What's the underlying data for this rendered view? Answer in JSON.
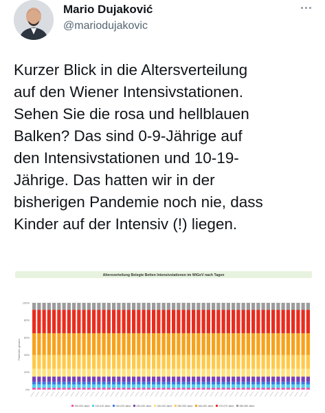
{
  "author": {
    "name": "Mario Dujaković",
    "handle": "@mariodujakovic"
  },
  "tweet": {
    "lines": [
      "Kurzer Blick in die Altersverteilung",
      "auf den Wiener Intensivstationen.",
      "Sehen Sie die rosa und hellblauen",
      "Balken? Das sind 0-9-Jährige auf",
      "den Intensivstationen und 10-19-",
      "Jährige. Das hatten wir in der",
      "bisherigen Pandemie noch nie, dass",
      "Kinder auf der Intensiv (!) liegen."
    ]
  },
  "icons": {
    "more": "more-dots-icon"
  },
  "chart_data": {
    "type": "bar",
    "stacked": "percent",
    "title": "Altersverteilung Belegte Betten Intensivstationen im WiGeV nach Tagen",
    "ylabel": "Patienten gesamt",
    "ylim": [
      0,
      100
    ],
    "yticks": [
      "0%",
      "20%",
      "40%",
      "60%",
      "80%",
      "100%"
    ],
    "bar_count": 56,
    "series": [
      {
        "name": "000-009 Jahre",
        "color": "#f24fa6",
        "values": [
          2,
          2,
          2,
          2,
          2,
          2,
          2,
          2,
          2,
          2,
          2,
          2,
          2,
          2,
          2,
          2,
          2,
          2,
          2,
          2,
          2,
          2,
          2,
          2,
          2,
          2,
          2,
          2,
          2,
          2,
          2,
          2,
          2,
          2,
          2,
          2,
          2,
          2,
          2,
          2,
          2,
          2,
          2,
          2,
          2,
          2,
          2,
          2,
          2,
          2,
          2,
          2,
          2,
          2,
          2,
          2
        ]
      },
      {
        "name": "010-019 Jahre",
        "color": "#4fd3f0",
        "values": [
          4,
          4,
          4,
          4,
          4,
          4,
          4,
          4,
          4,
          4,
          4,
          4,
          4,
          4,
          4,
          4,
          4,
          4,
          4,
          4,
          4,
          4,
          4,
          4,
          4,
          4,
          4,
          4,
          4,
          4,
          4,
          4,
          4,
          4,
          4,
          4,
          4,
          4,
          4,
          4,
          4,
          4,
          4,
          4,
          4,
          4,
          4,
          4,
          4,
          4,
          4,
          4,
          4,
          4,
          4,
          4
        ]
      },
      {
        "name": "020-029 Jahre",
        "color": "#3b7ae0",
        "values": [
          3,
          3,
          3,
          3,
          3,
          3,
          3,
          3,
          3,
          3,
          3,
          3,
          3,
          3,
          3,
          3,
          3,
          3,
          3,
          3,
          3,
          3,
          3,
          3,
          3,
          3,
          3,
          3,
          3,
          3,
          3,
          3,
          3,
          3,
          3,
          3,
          3,
          3,
          3,
          3,
          3,
          3,
          3,
          3,
          3,
          3,
          3,
          3,
          3,
          3,
          3,
          3,
          3,
          3,
          3,
          3
        ]
      },
      {
        "name": "030-039 Jahre",
        "color": "#7a3fb8",
        "values": [
          6,
          6,
          6,
          6,
          6,
          6,
          6,
          6,
          6,
          6,
          6,
          6,
          6,
          6,
          6,
          6,
          6,
          6,
          6,
          6,
          6,
          6,
          6,
          6,
          6,
          6,
          6,
          6,
          6,
          6,
          6,
          6,
          6,
          6,
          6,
          6,
          6,
          6,
          6,
          6,
          6,
          6,
          6,
          6,
          6,
          6,
          6,
          6,
          6,
          6,
          6,
          6,
          6,
          6,
          6,
          6
        ]
      },
      {
        "name": "040-049 Jahre",
        "color": "#ffe27a",
        "values": [
          9,
          9,
          9,
          9,
          9,
          9,
          9,
          9,
          9,
          9,
          9,
          9,
          9,
          9,
          9,
          9,
          9,
          9,
          9,
          9,
          9,
          9,
          9,
          9,
          9,
          9,
          9,
          9,
          9,
          9,
          9,
          9,
          9,
          9,
          9,
          9,
          9,
          9,
          9,
          9,
          9,
          9,
          9,
          9,
          9,
          9,
          9,
          9,
          9,
          9,
          9,
          9,
          9,
          9,
          9,
          9
        ]
      },
      {
        "name": "050-059 Jahre",
        "color": "#ffc94a",
        "values": [
          16,
          16,
          16,
          16,
          16,
          16,
          16,
          16,
          16,
          16,
          16,
          16,
          16,
          16,
          16,
          16,
          16,
          16,
          16,
          16,
          16,
          16,
          16,
          16,
          16,
          16,
          16,
          16,
          16,
          16,
          16,
          16,
          16,
          16,
          16,
          16,
          16,
          16,
          16,
          16,
          16,
          16,
          16,
          16,
          16,
          16,
          16,
          16,
          16,
          16,
          16,
          16,
          16,
          16,
          16,
          16
        ]
      },
      {
        "name": "060-069 Jahre",
        "color": "#f7a21b",
        "values": [
          25,
          25,
          25,
          25,
          25,
          25,
          25,
          25,
          25,
          25,
          25,
          25,
          25,
          25,
          25,
          25,
          25,
          25,
          25,
          25,
          25,
          25,
          25,
          25,
          25,
          25,
          25,
          25,
          25,
          25,
          25,
          25,
          25,
          25,
          25,
          25,
          25,
          25,
          25,
          25,
          25,
          25,
          25,
          25,
          25,
          25,
          25,
          25,
          25,
          25,
          25,
          25,
          25,
          25,
          25,
          25
        ]
      },
      {
        "name": "070-079 Jahre",
        "color": "#e82c1e",
        "values": [
          27,
          27,
          27,
          27,
          27,
          27,
          27,
          27,
          27,
          27,
          27,
          27,
          27,
          27,
          27,
          27,
          27,
          27,
          27,
          27,
          27,
          27,
          27,
          27,
          27,
          27,
          27,
          27,
          27,
          27,
          27,
          27,
          27,
          27,
          27,
          27,
          27,
          27,
          27,
          27,
          27,
          27,
          27,
          27,
          27,
          27,
          27,
          27,
          27,
          27,
          27,
          27,
          27,
          27,
          27,
          27
        ]
      },
      {
        "name": "080-089 Jahre",
        "color": "#9c9c9c",
        "values": [
          8,
          8,
          8,
          8,
          8,
          8,
          8,
          8,
          8,
          8,
          8,
          8,
          8,
          8,
          8,
          8,
          8,
          8,
          8,
          8,
          8,
          8,
          8,
          8,
          8,
          8,
          8,
          8,
          8,
          8,
          8,
          8,
          8,
          8,
          8,
          8,
          8,
          8,
          8,
          8,
          8,
          8,
          8,
          8,
          8,
          8,
          8,
          8,
          8,
          8,
          8,
          8,
          8,
          8,
          8,
          8
        ]
      }
    ],
    "legend_position": "bottom",
    "grid": true
  }
}
